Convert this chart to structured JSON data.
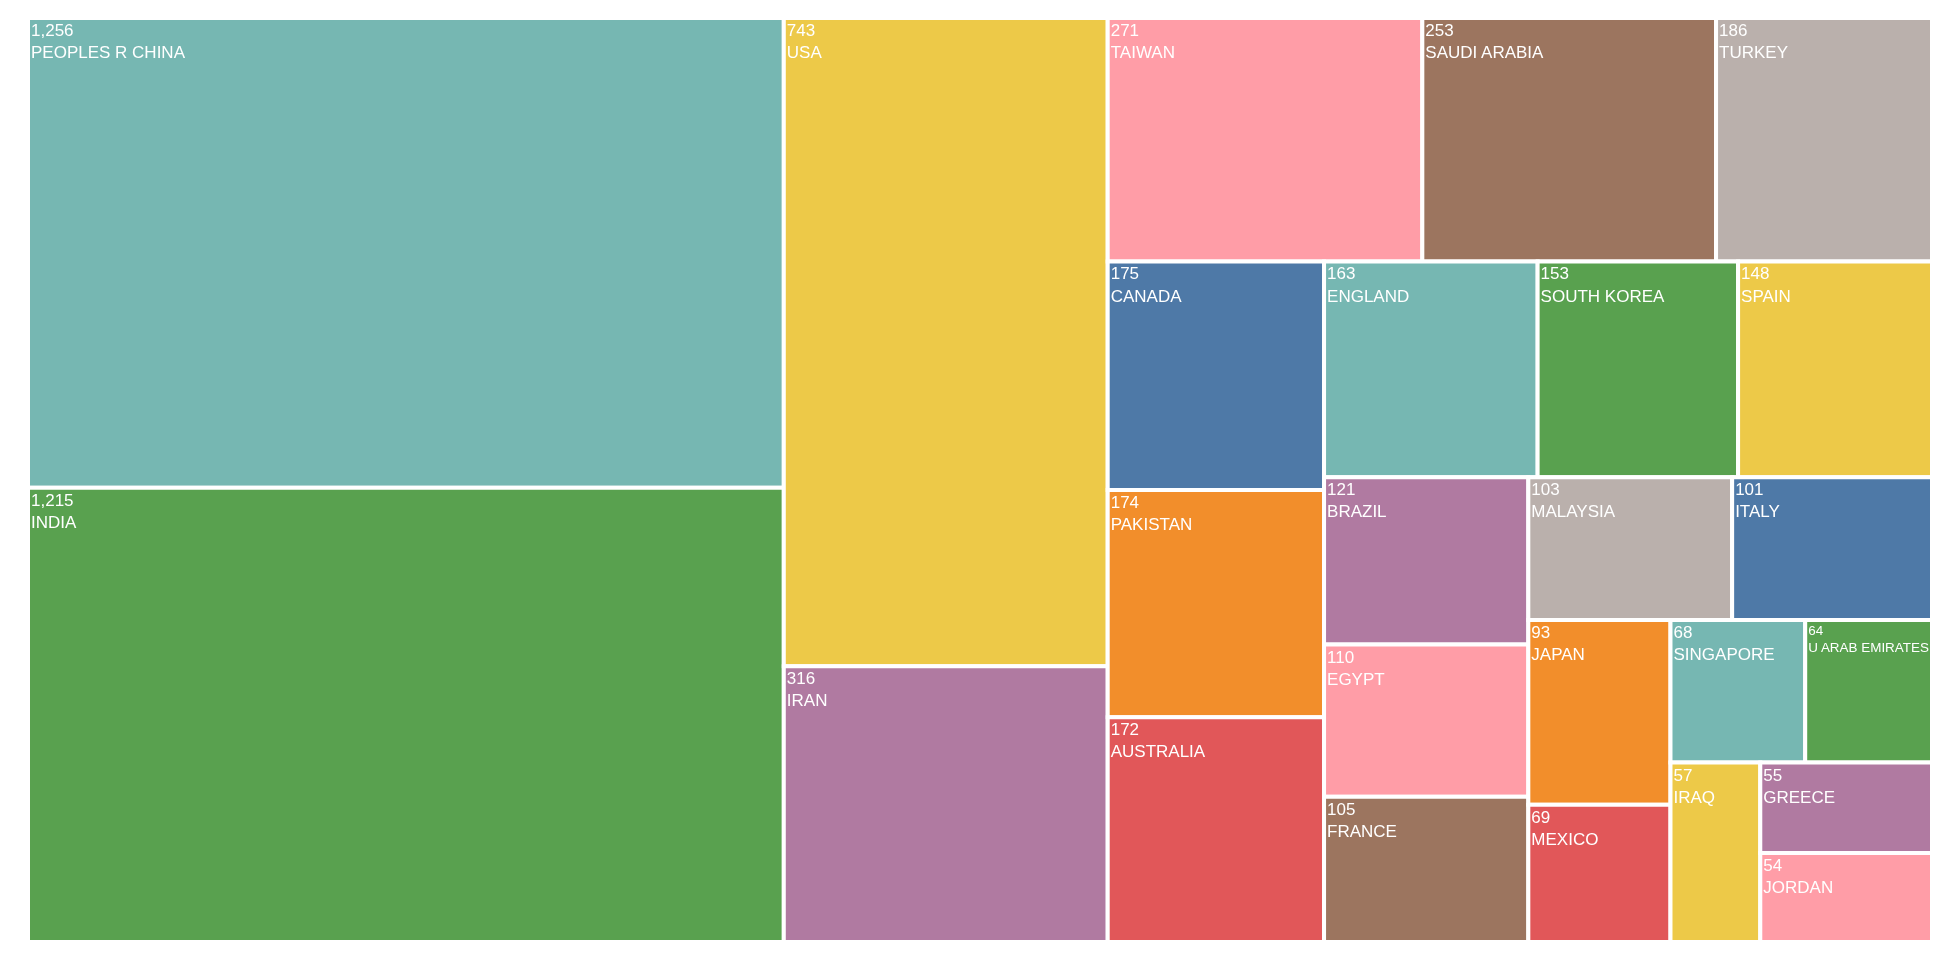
{
  "chart_data": {
    "type": "other",
    "categories": [
      "PEOPLES R CHINA",
      "INDIA",
      "USA",
      "IRAN",
      "TAIWAN",
      "SAUDI ARABIA",
      "TURKEY",
      "CANADA",
      "PAKISTAN",
      "AUSTRALIA",
      "ENGLAND",
      "SOUTH KOREA",
      "SPAIN",
      "BRAZIL",
      "EGYPT",
      "FRANCE",
      "MALAYSIA",
      "ITALY",
      "JAPAN",
      "MEXICO",
      "SINGAPORE",
      "U ARAB EMIRATES",
      "IRAQ",
      "GREECE",
      "JORDAN"
    ],
    "values": [
      1256,
      1215,
      743,
      316,
      271,
      253,
      186,
      175,
      174,
      172,
      163,
      153,
      148,
      121,
      110,
      105,
      103,
      101,
      93,
      69,
      68,
      64,
      57,
      55,
      54
    ],
    "colors": [
      "#76b7b2",
      "#59a14f",
      "#edc948",
      "#b07aa1",
      "#ff9da7",
      "#9c755f",
      "#bab0ac",
      "#4e79a7",
      "#f28e2b",
      "#e15759",
      "#76b7b2",
      "#59a14f",
      "#edc948",
      "#b07aa1",
      "#ff9da7",
      "#9c755f",
      "#bab0ac",
      "#4e79a7",
      "#f28e2b",
      "#e15759",
      "#76b7b2",
      "#59a14f",
      "#edc948",
      "#b07aa1",
      "#ff9da7"
    ],
    "value_labels": [
      "1,256",
      "1,215",
      "743",
      "316",
      "271",
      "253",
      "186",
      "175",
      "174",
      "172",
      "163",
      "153",
      "148",
      "121",
      "110",
      "105",
      "103",
      "101",
      "93",
      "69",
      "68",
      "64",
      "57",
      "55",
      "54"
    ]
  }
}
